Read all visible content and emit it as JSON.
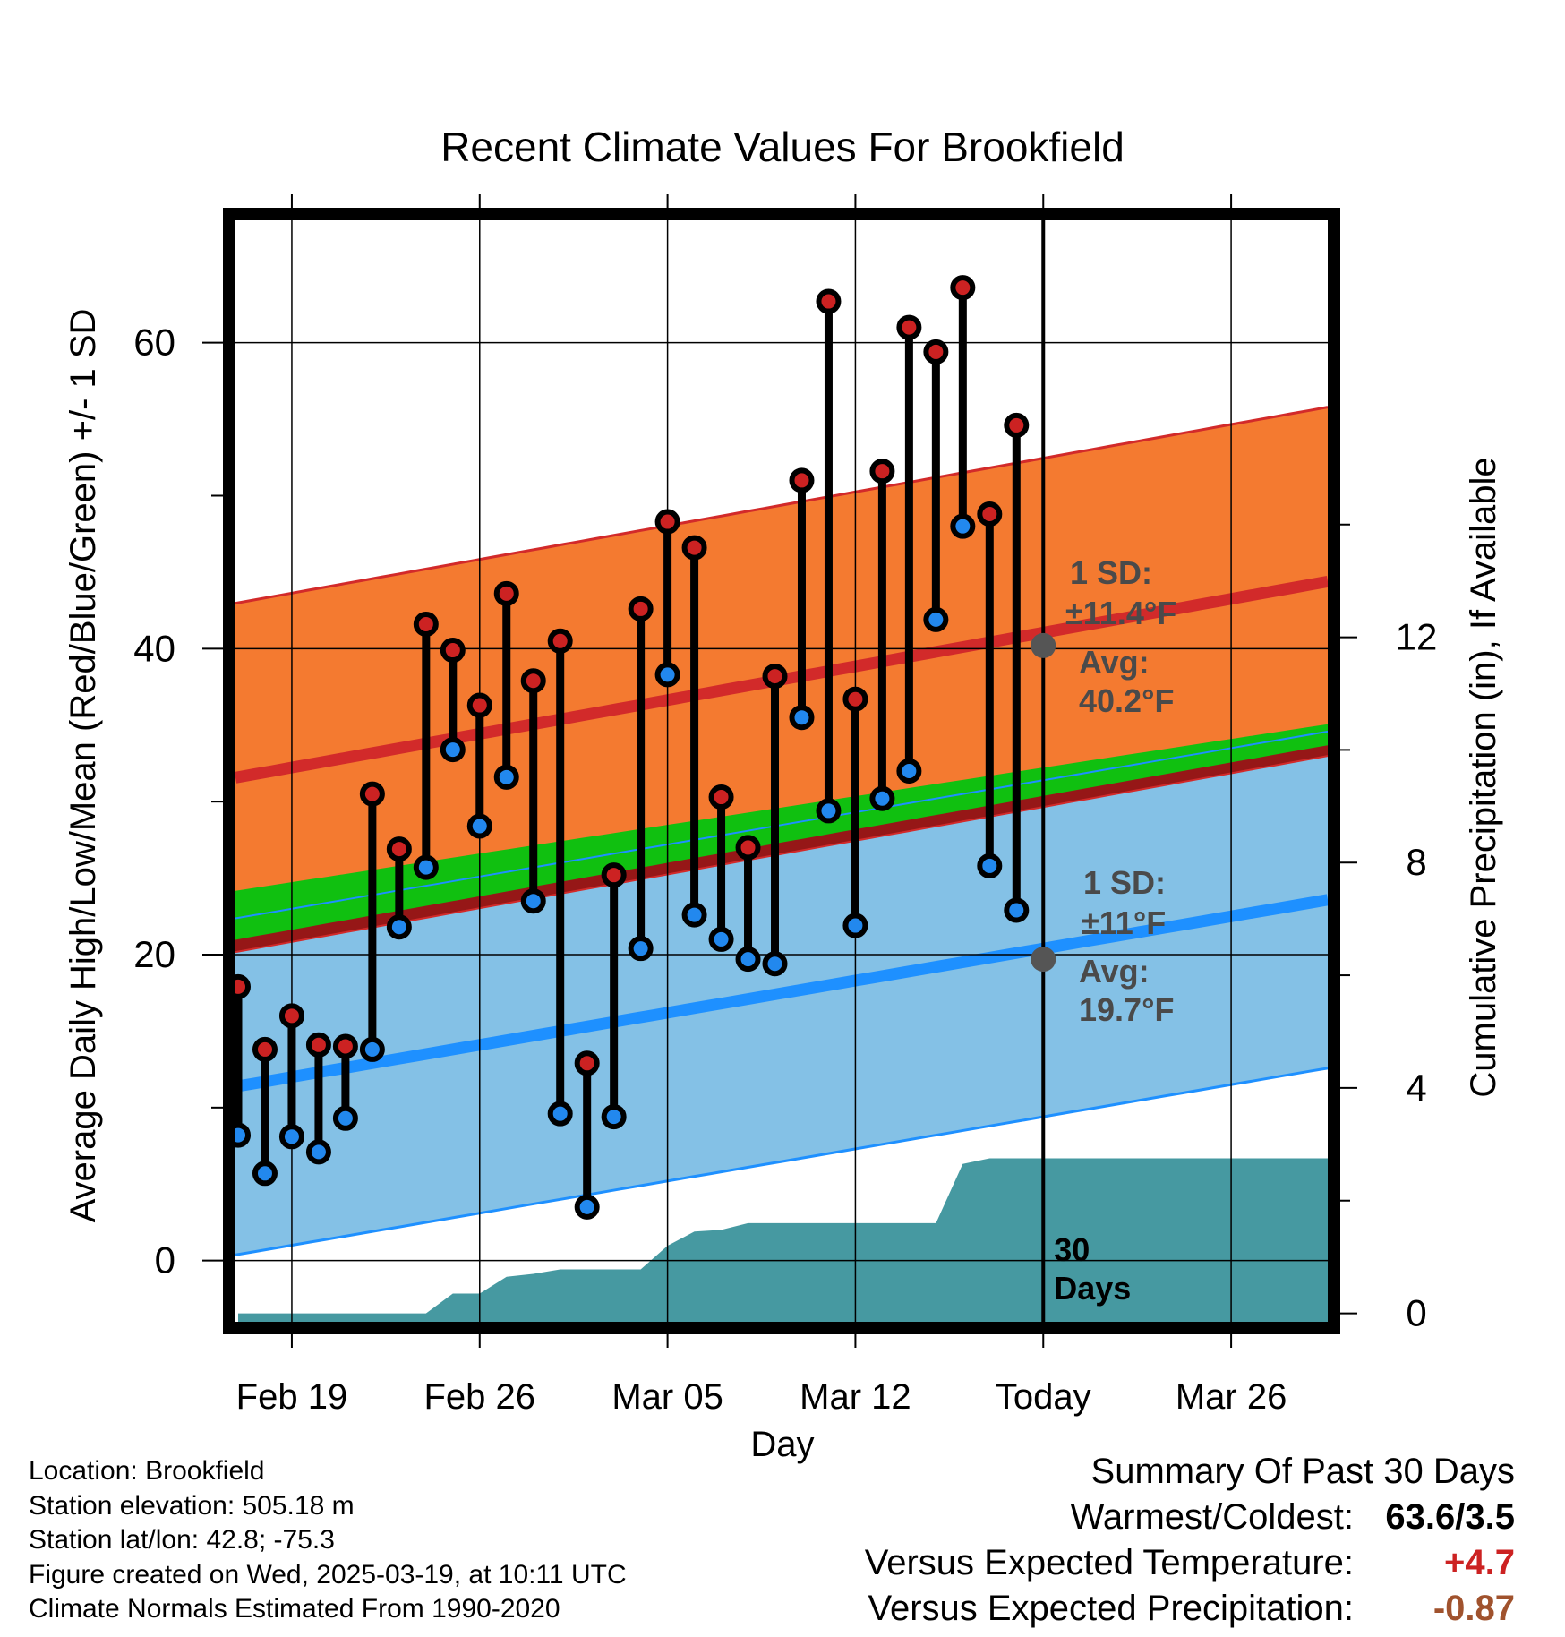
{
  "chart_data": {
    "type": "line",
    "title": "Recent Climate Values For Brookfield",
    "xlabel": "Day",
    "ylabel": "Average Daily High/Low/Mean (Red/Blue/Green) +/- 1 SD",
    "y2label": "Cumulative Precipitation (in), If Available",
    "x_tick_labels": [
      "Feb 19",
      "Feb 26",
      "Mar 05",
      "Mar 12",
      "Today",
      "Mar 26"
    ],
    "x_tick_days": [
      1,
      8,
      15,
      22,
      29,
      36
    ],
    "xlim_days": [
      -1.1,
      39.6
    ],
    "ylim": [
      -4,
      68
    ],
    "y_ticks": [
      0,
      20,
      40,
      60
    ],
    "y2lim": [
      -0.15,
      19.4
    ],
    "y2_ticks": [
      0,
      4,
      8,
      12
    ],
    "grid": true,
    "today_day": 29,
    "today_label": "30 Days",
    "normals": {
      "days": [
        -1,
        39
      ],
      "high_mean": [
        31.6,
        44.2
      ],
      "high_sd": 11.4,
      "low_mean": [
        11.4,
        23.4
      ],
      "low_sd": 11.0,
      "mean_lower": [
        21.0,
        33.5
      ],
      "mean_upper": [
        24.2,
        34.9
      ]
    },
    "annotations": {
      "high_sd_label": "1 SD:",
      "high_sd_value": "±11.4°F",
      "high_avg_label": "Avg:",
      "high_avg_value": "40.2°F",
      "high_avg": 40.2,
      "low_sd_label": "1 SD:",
      "low_sd_value": "±11°F",
      "low_avg_label": "Avg:",
      "low_avg_value": "19.7°F",
      "low_avg": 19.7
    },
    "series": [
      {
        "name": "High",
        "color": "#cc2222",
        "values": [
          17.9,
          13.8,
          16.0,
          14.1,
          14.0,
          30.5,
          26.9,
          41.6,
          39.9,
          36.3,
          43.6,
          37.9,
          40.5,
          12.9,
          25.2,
          42.6,
          48.3,
          46.6,
          30.3,
          27.0,
          38.2,
          51.0,
          62.7,
          36.7,
          51.6,
          61.0,
          59.4,
          63.6,
          48.8,
          54.6
        ]
      },
      {
        "name": "Low",
        "color": "#2288ee",
        "values": [
          8.2,
          5.7,
          8.1,
          7.1,
          9.3,
          13.8,
          21.8,
          25.7,
          33.4,
          28.4,
          31.6,
          23.5,
          9.6,
          3.5,
          9.4,
          20.4,
          38.3,
          22.6,
          21.0,
          19.7,
          19.4,
          35.5,
          29.4,
          21.9,
          30.2,
          32.0,
          41.9,
          48.0,
          25.8,
          22.9
        ]
      }
    ],
    "series_start_day": -1,
    "precip_cumulative": {
      "days": [
        -1,
        6,
        7,
        8,
        9,
        10,
        11,
        12,
        13,
        14,
        15,
        16,
        17,
        18,
        19,
        20,
        21,
        22,
        23,
        24,
        25,
        26,
        27,
        28,
        29,
        39.6
      ],
      "values": [
        0,
        0,
        0.35,
        0.35,
        0.65,
        0.7,
        0.78,
        0.78,
        0.78,
        0.78,
        1.2,
        1.45,
        1.48,
        1.6,
        1.6,
        1.6,
        1.6,
        1.6,
        1.6,
        1.6,
        1.6,
        2.65,
        2.75,
        2.75,
        2.75,
        2.75
      ]
    }
  },
  "footer": {
    "location": "Location: Brookfield",
    "elevation": "Station elevation: 505.18 m",
    "latlon": "Station lat/lon: 42.8; -75.3",
    "created": "Figure created on Wed, 2025-03-19, at 10:11 UTC",
    "normals_period": "Climate Normals Estimated From 1990-2020"
  },
  "summary": {
    "heading": "Summary Of Past 30 Days",
    "warm_cold_label": "Warmest/Coldest:",
    "warm_cold_value": "63.6/3.5",
    "temp_label": "Versus Expected Temperature:",
    "temp_value": "+4.7",
    "precip_label": "Versus Expected Precipitation:",
    "precip_value": "-0.87",
    "colors": {
      "warm_cold": "#000000",
      "temp": "#cc2222",
      "precip": "#a0522d"
    }
  }
}
